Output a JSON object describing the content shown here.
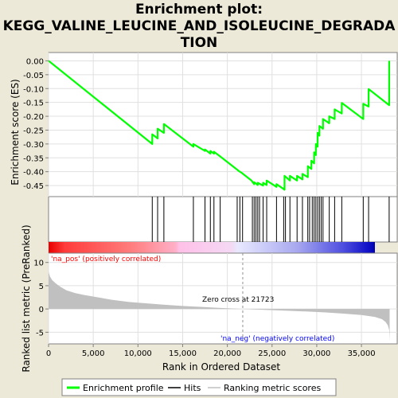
{
  "title": {
    "lines": [
      "Enrichment plot:",
      "KEGG_VALINE_LEUCINE_AND_ISOLEUCINE_DEGRADA",
      "TION"
    ]
  },
  "colors": {
    "background": "#ECE9D8",
    "es_line": "#00FF00",
    "hit": "#000000",
    "metric_fill": "#C0C0C0",
    "pos_label": "#FF0000",
    "neg_label": "#0000FF",
    "zero_line": "#909090"
  },
  "labels": {
    "na_pos": "'na_pos' (positively correlated)",
    "na_neg": "'na_neg' (negatively correlated)",
    "zero_cross": "Zero cross at 21723"
  },
  "legend": {
    "items": [
      {
        "label": "Enrichment profile",
        "icon": "green-line-icon"
      },
      {
        "label": "Hits",
        "icon": "black-line-icon"
      },
      {
        "label": "Ranking metric scores",
        "icon": "gray-line-icon"
      }
    ]
  },
  "chart_data": [
    {
      "type": "line",
      "name": "enrichment-profile",
      "ylabel": "Enrichment score (ES)",
      "xlim": [
        0,
        39000
      ],
      "ylim": [
        -0.49,
        0.03
      ],
      "yticks": [
        "0.00",
        "-0.05",
        "-0.10",
        "-0.15",
        "-0.20",
        "-0.25",
        "-0.30",
        "-0.35",
        "-0.40",
        "-0.45"
      ],
      "ytick_values": [
        0.0,
        -0.05,
        -0.1,
        -0.15,
        -0.2,
        -0.25,
        -0.3,
        -0.35,
        -0.4,
        -0.45
      ],
      "grid": true,
      "points": [
        [
          0,
          0.0
        ],
        [
          11600,
          -0.3
        ],
        [
          11600,
          -0.265
        ],
        [
          12200,
          -0.28
        ],
        [
          12200,
          -0.245
        ],
        [
          12900,
          -0.26
        ],
        [
          12900,
          -0.228
        ],
        [
          16200,
          -0.31
        ],
        [
          16200,
          -0.3
        ],
        [
          17500,
          -0.325
        ],
        [
          17500,
          -0.32
        ],
        [
          18100,
          -0.335
        ],
        [
          18100,
          -0.325
        ],
        [
          18500,
          -0.335
        ],
        [
          18500,
          -0.328
        ],
        [
          19200,
          -0.345
        ],
        [
          21000,
          -0.39
        ],
        [
          21300,
          -0.398
        ],
        [
          21600,
          -0.404
        ],
        [
          22700,
          -0.432
        ],
        [
          23000,
          -0.445
        ],
        [
          23000,
          -0.438
        ],
        [
          23400,
          -0.448
        ],
        [
          23400,
          -0.44
        ],
        [
          24000,
          -0.45
        ],
        [
          24000,
          -0.44
        ],
        [
          24400,
          -0.448
        ],
        [
          24400,
          -0.432
        ],
        [
          25500,
          -0.455
        ],
        [
          25500,
          -0.445
        ],
        [
          26400,
          -0.465
        ],
        [
          26400,
          -0.415
        ],
        [
          27000,
          -0.432
        ],
        [
          27000,
          -0.415
        ],
        [
          27800,
          -0.432
        ],
        [
          27800,
          -0.415
        ],
        [
          28400,
          -0.428
        ],
        [
          28400,
          -0.408
        ],
        [
          29000,
          -0.42
        ],
        [
          29000,
          -0.38
        ],
        [
          29400,
          -0.39
        ],
        [
          29400,
          -0.36
        ],
        [
          29700,
          -0.37
        ],
        [
          29700,
          -0.33
        ],
        [
          29900,
          -0.34
        ],
        [
          29900,
          -0.3
        ],
        [
          30100,
          -0.31
        ],
        [
          30100,
          -0.26
        ],
        [
          30300,
          -0.27
        ],
        [
          30300,
          -0.235
        ],
        [
          30700,
          -0.245
        ],
        [
          30700,
          -0.21
        ],
        [
          31400,
          -0.225
        ],
        [
          31400,
          -0.2
        ],
        [
          32000,
          -0.21
        ],
        [
          32000,
          -0.175
        ],
        [
          32800,
          -0.19
        ],
        [
          32800,
          -0.152
        ],
        [
          35200,
          -0.21
        ],
        [
          35200,
          -0.155
        ],
        [
          35800,
          -0.165
        ],
        [
          35800,
          -0.102
        ],
        [
          38100,
          -0.16
        ],
        [
          38100,
          0.0
        ]
      ]
    },
    {
      "type": "bar",
      "name": "hits",
      "x": [
        11600,
        12200,
        12900,
        16200,
        17500,
        18100,
        18500,
        19200,
        21100,
        21400,
        21700,
        22800,
        23000,
        23200,
        23400,
        23600,
        24000,
        24400,
        25500,
        26300,
        26500,
        27000,
        27800,
        28400,
        29000,
        29200,
        29500,
        29700,
        29900,
        30100,
        30300,
        30500,
        30700,
        31400,
        32000,
        32800,
        35200,
        35800,
        38100
      ]
    },
    {
      "type": "area",
      "name": "ranked-list-metric",
      "xlabel": "Rank in Ordered Dataset",
      "ylabel": "Ranked list metric (PreRanked)",
      "xlim": [
        0,
        39000
      ],
      "ylim": [
        -7.5,
        12
      ],
      "yticks": [
        "10",
        "5",
        "0",
        "-5"
      ],
      "ytick_values": [
        10,
        5,
        0,
        -5
      ],
      "xticks": [
        "0",
        "5,000",
        "10,000",
        "15,000",
        "20,000",
        "25,000",
        "30,000",
        "35,000"
      ],
      "xtick_values": [
        0,
        5000,
        10000,
        15000,
        20000,
        25000,
        30000,
        35000
      ],
      "grid": true,
      "points": [
        [
          0,
          8.0
        ],
        [
          150,
          7.0
        ],
        [
          400,
          6.2
        ],
        [
          800,
          5.5
        ],
        [
          1300,
          4.8
        ],
        [
          2000,
          4.0
        ],
        [
          3000,
          3.4
        ],
        [
          4000,
          3.0
        ],
        [
          5500,
          2.5
        ],
        [
          7000,
          2.0
        ],
        [
          9000,
          1.5
        ],
        [
          11000,
          1.2
        ],
        [
          13000,
          0.9
        ],
        [
          15000,
          0.65
        ],
        [
          17000,
          0.45
        ],
        [
          19000,
          0.25
        ],
        [
          21000,
          0.08
        ],
        [
          21723,
          0.0
        ],
        [
          23000,
          -0.1
        ],
        [
          25000,
          -0.25
        ],
        [
          27000,
          -0.4
        ],
        [
          29000,
          -0.55
        ],
        [
          31000,
          -0.75
        ],
        [
          33000,
          -1.0
        ],
        [
          35000,
          -1.3
        ],
        [
          36500,
          -1.7
        ],
        [
          37300,
          -2.2
        ],
        [
          37700,
          -2.8
        ],
        [
          37950,
          -3.5
        ],
        [
          38100,
          -4.5
        ],
        [
          38150,
          -6.8
        ]
      ]
    }
  ]
}
